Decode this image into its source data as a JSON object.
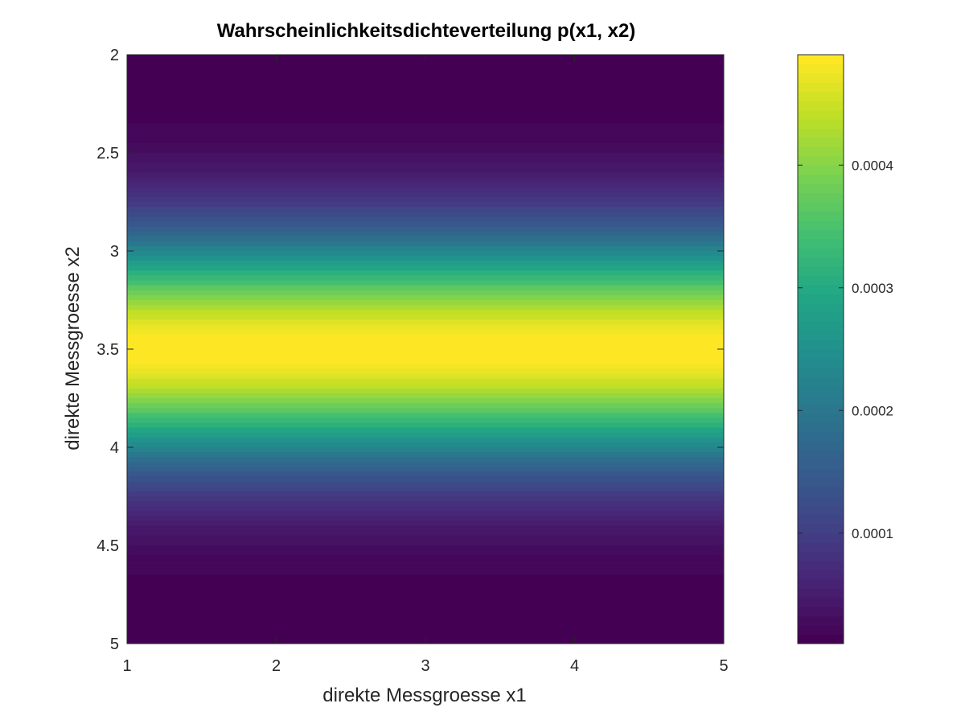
{
  "chart_data": {
    "type": "heatmap",
    "title": "Wahrscheinlichkeitsdichteverteilung p(x1, x2)",
    "xlabel": "direkte Messgroesse x1",
    "ylabel": "direkte Messgroesse x2",
    "xlim": [
      1,
      5
    ],
    "ylim": [
      2,
      5
    ],
    "y_reversed": true,
    "x_ticks": [
      1,
      2,
      3,
      4,
      5
    ],
    "x_tick_labels": [
      "1",
      "2",
      "3",
      "4",
      "5"
    ],
    "y_ticks": [
      2,
      2.5,
      3,
      3.5,
      4,
      4.5,
      5
    ],
    "y_tick_labels": [
      "2",
      "2.5",
      "3",
      "3.5",
      "4",
      "4.5",
      "5"
    ],
    "colormap": "viridis",
    "color_levels": 64,
    "grid": false,
    "density_model": {
      "depends_on": "x2",
      "mean_x2": 3.5,
      "std_x2": 0.4,
      "peak_value": 0.00049,
      "min_value": 1e-05
    },
    "colorbar": {
      "range": [
        1e-05,
        0.00049
      ],
      "ticks": [
        0.0001,
        0.0002,
        0.0003,
        0.0004
      ],
      "tick_labels": [
        "0.0001",
        "0.0002",
        "0.0003",
        "0.0004"
      ]
    }
  }
}
